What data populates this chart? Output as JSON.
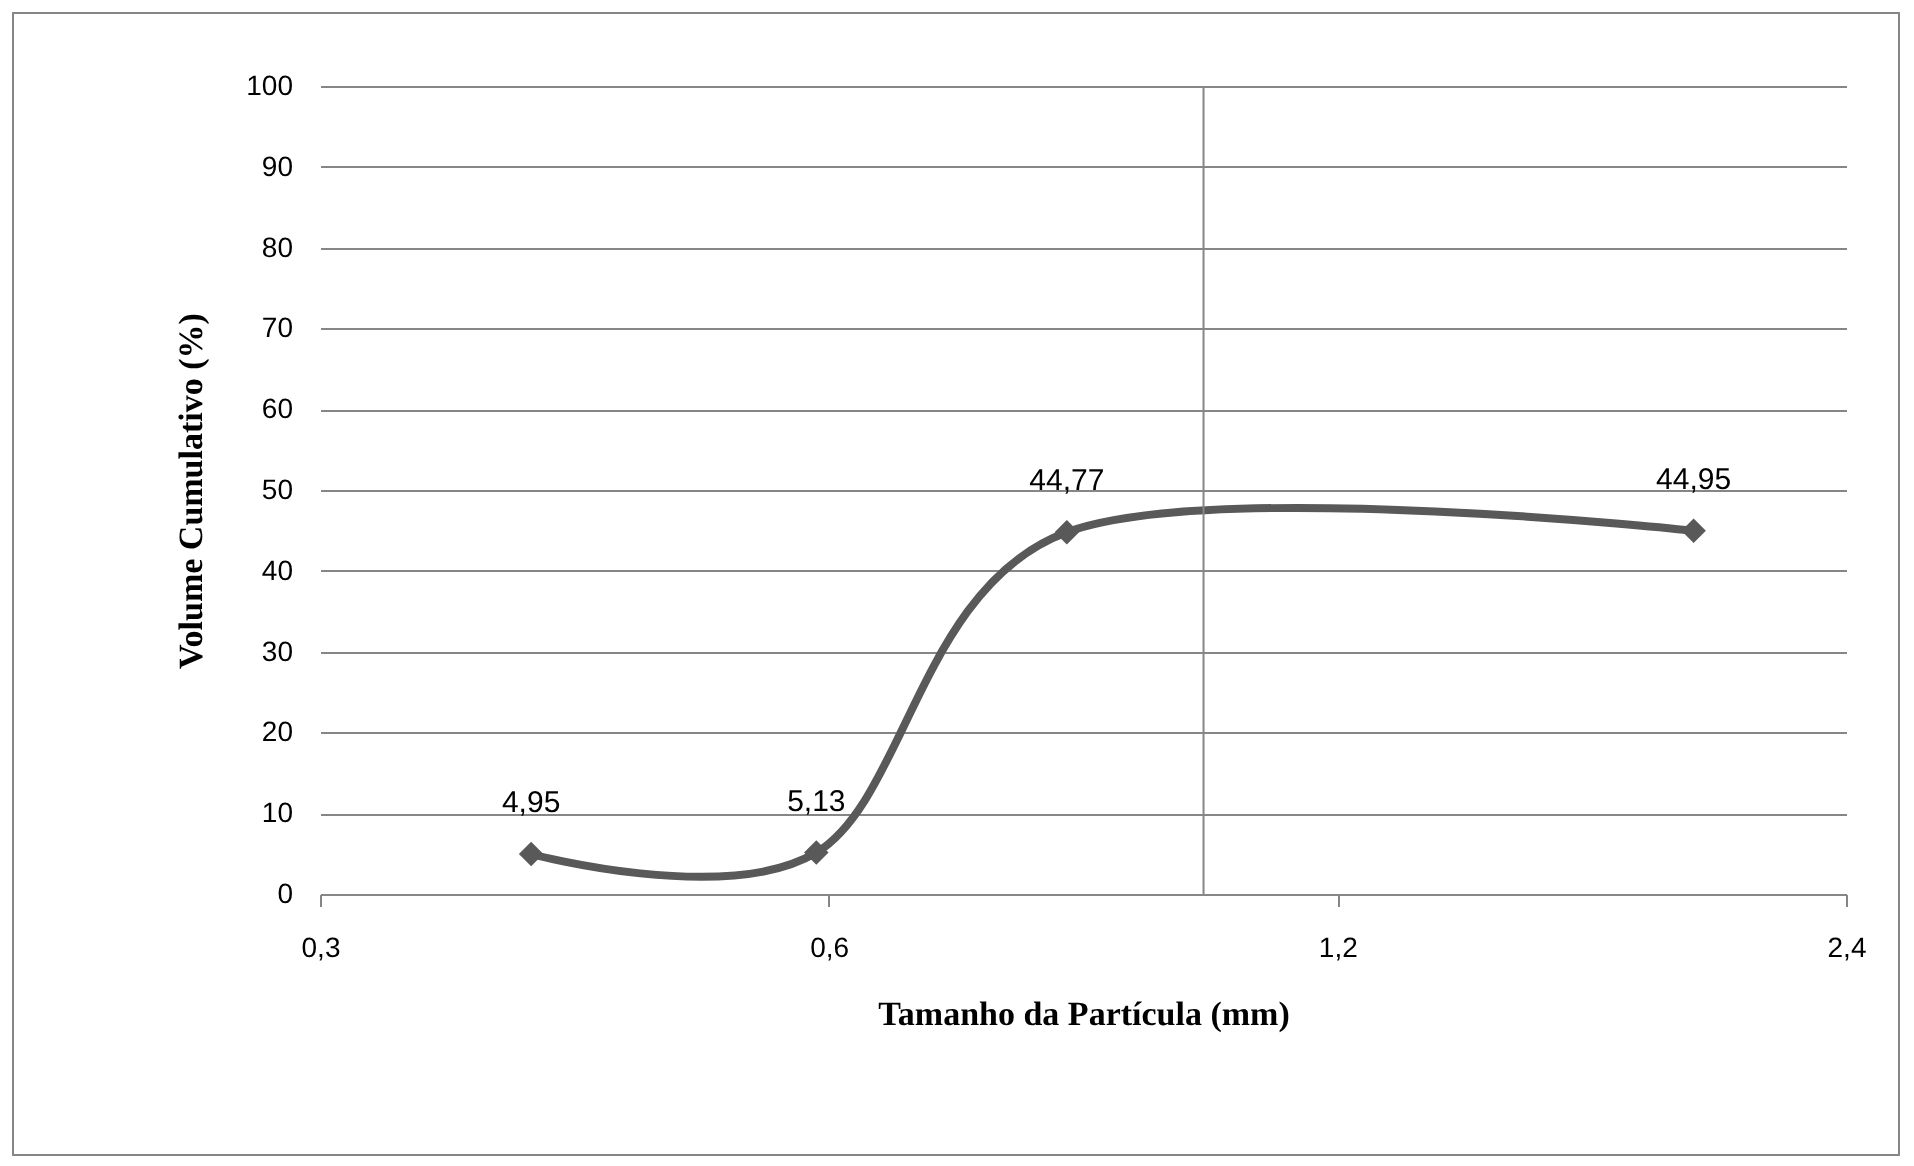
{
  "chart_data": {
    "type": "line",
    "xlabel": "Tamanho da Partícula (mm)",
    "ylabel": "Volume Cumulativo (%)",
    "x": [
      0.4,
      0.59,
      0.83,
      1.95
    ],
    "series": [
      {
        "color": "#595959",
        "values": [
          4.95,
          5.13,
          44.77,
          44.95
        ],
        "value_labels": [
          "4,95",
          "5,13",
          "44,77",
          "44,95"
        ]
      }
    ],
    "log": "x",
    "xlim": [
      0.3,
      2.4
    ],
    "xticks": [
      {
        "value": 0.3,
        "label": "0,3"
      },
      {
        "value": 0.6,
        "label": "0,6"
      },
      {
        "value": 1.2,
        "label": "1,2"
      },
      {
        "value": 2.4,
        "label": "2,4"
      }
    ],
    "ylim": [
      0,
      100
    ],
    "yticks": [
      0,
      10,
      20,
      30,
      40,
      50,
      60,
      70,
      80,
      90,
      100
    ],
    "ref_lines": [
      {
        "axis": "x",
        "value": 1,
        "color": "#868686"
      }
    ],
    "grid": "y",
    "marker": "diamond"
  }
}
